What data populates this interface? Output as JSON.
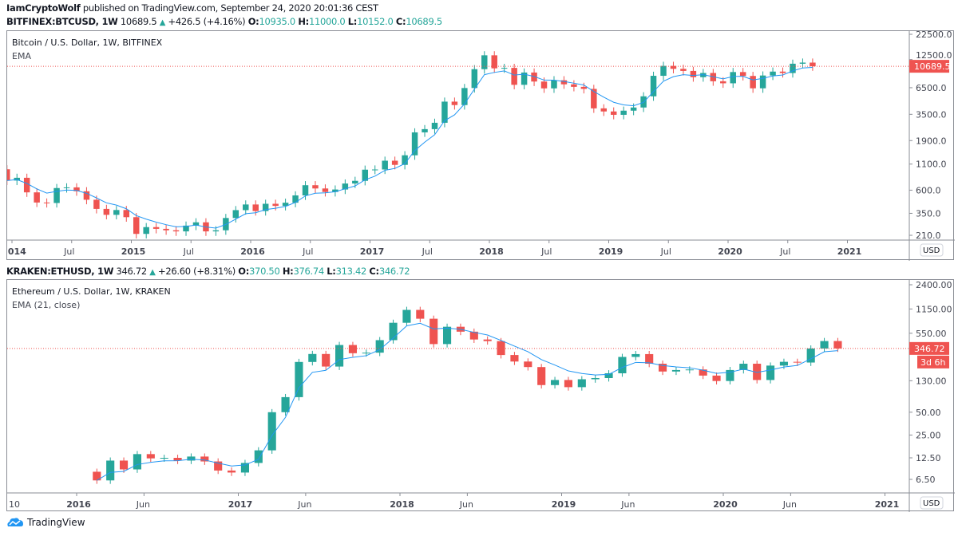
{
  "header": {
    "author": "IamCryptoWolf",
    "published": "published on TradingView.com, September 24, 2020 20:01:36 CEST"
  },
  "colors": {
    "up": "#26a69a",
    "down": "#ef5350",
    "ema": "#2196f3",
    "last_price": "#ef5350"
  },
  "footer": {
    "logo_text": "TradingView",
    "icon": "tradingview-cloud-icon"
  },
  "chart_data": [
    {
      "type": "candlestick",
      "symbol": "BITFINEX:BTCUSD, 1W",
      "last": "10689.5",
      "change": "+426.5 (+4.16%)",
      "ohlc": {
        "O": "10935.0",
        "H": "11000.0",
        "L": "10152.0",
        "C": "10689.5"
      },
      "title": "Bitcoin / U.S. Dollar, 1W, BITFINEX",
      "indicator": "EMA",
      "currency": "USD",
      "scale": "log",
      "ylim": [
        200,
        24000
      ],
      "last_label": "10689.5",
      "price_ticks": [
        "22500.0",
        "12500.0",
        "6500.0",
        "3500.0",
        "1900.0",
        "1100.0",
        "600.0",
        "350.0",
        "210.0"
      ],
      "time_ticks": [
        {
          "label": "2014",
          "date": "2014-01",
          "bold": true
        },
        {
          "label": "Jul",
          "date": "2014-07"
        },
        {
          "label": "2015",
          "date": "2015-01",
          "bold": true
        },
        {
          "label": "Jul",
          "date": "2015-07"
        },
        {
          "label": "2016",
          "date": "2016-01",
          "bold": true
        },
        {
          "label": "Jul",
          "date": "2016-07"
        },
        {
          "label": "2017",
          "date": "2017-01",
          "bold": true
        },
        {
          "label": "Jul",
          "date": "2017-07"
        },
        {
          "label": "2018",
          "date": "2018-01",
          "bold": true
        },
        {
          "label": "Jul",
          "date": "2018-07"
        },
        {
          "label": "2019",
          "date": "2019-01",
          "bold": true
        },
        {
          "label": "Jul",
          "date": "2019-07"
        },
        {
          "label": "2020",
          "date": "2020-01",
          "bold": true
        },
        {
          "label": "Jul",
          "date": "2020-07"
        },
        {
          "label": "2021",
          "date": "2021-01",
          "bold": true
        }
      ],
      "start": "2013-12",
      "closes": [
        750,
        800,
        570,
        450,
        445,
        630,
        640,
        585,
        480,
        388,
        338,
        378,
        320,
        217,
        254,
        244,
        236,
        230,
        263,
        284,
        230,
        236,
        314,
        377,
        430,
        369,
        437,
        416,
        448,
        531,
        673,
        624,
        575,
        609,
        700,
        745,
        966,
        970,
        1190,
        1080,
        1350,
        2300,
        2480,
        2875,
        4700,
        4340,
        6450,
        10000,
        13800,
        10200,
        10300,
        6950,
        9250,
        7500,
        6400,
        7730,
        7030,
        6630,
        6320,
        4020,
        3740,
        3460,
        3810,
        4100,
        5320,
        8570,
        10800,
        10080,
        9600,
        8300,
        9150,
        7550,
        7200,
        9350,
        8540,
        6410,
        8630,
        9450,
        9140,
        11350,
        11650,
        10689.5
      ]
    },
    {
      "type": "candlestick",
      "symbol": "KRAKEN:ETHUSD, 1W",
      "last": "346.72",
      "change": "+26.60 (+8.31%)",
      "ohlc": {
        "O": "370.50",
        "H": "376.74",
        "L": "313.42",
        "C": "346.72"
      },
      "title": "Ethereum / U.S. Dollar, 1W, KRAKEN",
      "indicator": "EMA (21, close)",
      "currency": "USD",
      "scale": "log",
      "ylim": [
        5,
        2600
      ],
      "last_label": "346.72",
      "countdown": "3d 6h",
      "price_ticks": [
        "2400.00",
        "1150.00",
        "550.00",
        "130.00",
        "50.00",
        "25.00",
        "12.50",
        "6.50"
      ],
      "time_ticks": [
        {
          "label": "10"
        },
        {
          "label": "2016",
          "date": "2016-01",
          "bold": true
        },
        {
          "label": "Jun",
          "date": "2016-06"
        },
        {
          "label": "2017",
          "date": "2017-01",
          "bold": true
        },
        {
          "label": "Jun",
          "date": "2017-06"
        },
        {
          "label": "2018",
          "date": "2018-01",
          "bold": true
        },
        {
          "label": "Jun",
          "date": "2018-06"
        },
        {
          "label": "2019",
          "date": "2019-01",
          "bold": true
        },
        {
          "label": "Jun",
          "date": "2019-06"
        },
        {
          "label": "2020",
          "date": "2020-01",
          "bold": true
        },
        {
          "label": "Jun",
          "date": "2020-06"
        },
        {
          "label": "2021",
          "date": "2021-01",
          "bold": true
        }
      ],
      "start": "2016-02",
      "closes": [
        6.3,
        11.5,
        8.8,
        14,
        12.3,
        12.5,
        11.5,
        13,
        11.2,
        8.5,
        8.0,
        10.7,
        15.7,
        50,
        79,
        230,
        293,
        200,
        385,
        300,
        305,
        446,
        756,
        1118,
        855,
        396,
        670,
        577,
        455,
        433,
        284,
        233,
        197,
        114,
        133,
        107,
        136,
        141,
        163,
        268,
        292,
        218,
        172,
        180,
        183,
        152,
        129,
        180,
        218,
        133,
        206,
        231,
        226,
        346,
        434,
        346.72
      ]
    }
  ]
}
